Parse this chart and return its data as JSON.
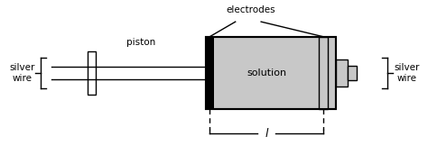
{
  "fig_width": 4.74,
  "fig_height": 1.62,
  "dpi": 100,
  "bg_color": "#ffffff",
  "label_silver_wire_left": "silver\nwire",
  "label_silver_wire_right": "silver\nwire",
  "label_piston": "piston",
  "label_electrodes": "electrodes",
  "label_solution": "solution",
  "label_l": "l",
  "colors": {
    "black": "#000000",
    "light_gray": "#c8c8c8",
    "white": "#ffffff"
  }
}
